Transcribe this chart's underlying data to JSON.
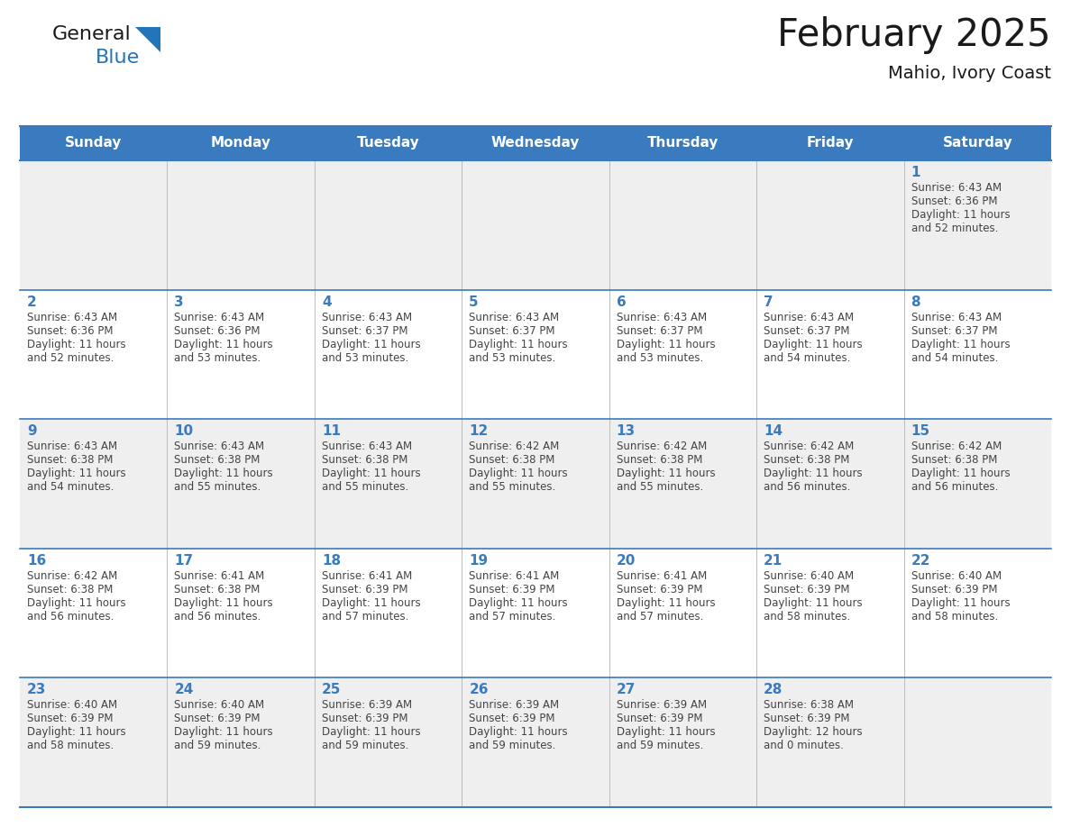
{
  "title": "February 2025",
  "subtitle": "Mahio, Ivory Coast",
  "header_bg": "#3a7abf",
  "header_text_color": "#ffffff",
  "cell_bg_odd": "#efefef",
  "cell_bg_even": "#ffffff",
  "day_names": [
    "Sunday",
    "Monday",
    "Tuesday",
    "Wednesday",
    "Thursday",
    "Friday",
    "Saturday"
  ],
  "title_color": "#1a1a1a",
  "subtitle_color": "#1a1a1a",
  "day_number_color": "#3a7abf",
  "cell_text_color": "#444444",
  "divider_color": "#3a7abf",
  "grid_color": "#bbbbbb",
  "days": [
    {
      "date": 1,
      "col": 6,
      "row": 0,
      "sunrise": "6:43 AM",
      "sunset": "6:36 PM",
      "daylight": "11 hours",
      "daylight2": "and 52 minutes."
    },
    {
      "date": 2,
      "col": 0,
      "row": 1,
      "sunrise": "6:43 AM",
      "sunset": "6:36 PM",
      "daylight": "11 hours",
      "daylight2": "and 52 minutes."
    },
    {
      "date": 3,
      "col": 1,
      "row": 1,
      "sunrise": "6:43 AM",
      "sunset": "6:36 PM",
      "daylight": "11 hours",
      "daylight2": "and 53 minutes."
    },
    {
      "date": 4,
      "col": 2,
      "row": 1,
      "sunrise": "6:43 AM",
      "sunset": "6:37 PM",
      "daylight": "11 hours",
      "daylight2": "and 53 minutes."
    },
    {
      "date": 5,
      "col": 3,
      "row": 1,
      "sunrise": "6:43 AM",
      "sunset": "6:37 PM",
      "daylight": "11 hours",
      "daylight2": "and 53 minutes."
    },
    {
      "date": 6,
      "col": 4,
      "row": 1,
      "sunrise": "6:43 AM",
      "sunset": "6:37 PM",
      "daylight": "11 hours",
      "daylight2": "and 53 minutes."
    },
    {
      "date": 7,
      "col": 5,
      "row": 1,
      "sunrise": "6:43 AM",
      "sunset": "6:37 PM",
      "daylight": "11 hours",
      "daylight2": "and 54 minutes."
    },
    {
      "date": 8,
      "col": 6,
      "row": 1,
      "sunrise": "6:43 AM",
      "sunset": "6:37 PM",
      "daylight": "11 hours",
      "daylight2": "and 54 minutes."
    },
    {
      "date": 9,
      "col": 0,
      "row": 2,
      "sunrise": "6:43 AM",
      "sunset": "6:38 PM",
      "daylight": "11 hours",
      "daylight2": "and 54 minutes."
    },
    {
      "date": 10,
      "col": 1,
      "row": 2,
      "sunrise": "6:43 AM",
      "sunset": "6:38 PM",
      "daylight": "11 hours",
      "daylight2": "and 55 minutes."
    },
    {
      "date": 11,
      "col": 2,
      "row": 2,
      "sunrise": "6:43 AM",
      "sunset": "6:38 PM",
      "daylight": "11 hours",
      "daylight2": "and 55 minutes."
    },
    {
      "date": 12,
      "col": 3,
      "row": 2,
      "sunrise": "6:42 AM",
      "sunset": "6:38 PM",
      "daylight": "11 hours",
      "daylight2": "and 55 minutes."
    },
    {
      "date": 13,
      "col": 4,
      "row": 2,
      "sunrise": "6:42 AM",
      "sunset": "6:38 PM",
      "daylight": "11 hours",
      "daylight2": "and 55 minutes."
    },
    {
      "date": 14,
      "col": 5,
      "row": 2,
      "sunrise": "6:42 AM",
      "sunset": "6:38 PM",
      "daylight": "11 hours",
      "daylight2": "and 56 minutes."
    },
    {
      "date": 15,
      "col": 6,
      "row": 2,
      "sunrise": "6:42 AM",
      "sunset": "6:38 PM",
      "daylight": "11 hours",
      "daylight2": "and 56 minutes."
    },
    {
      "date": 16,
      "col": 0,
      "row": 3,
      "sunrise": "6:42 AM",
      "sunset": "6:38 PM",
      "daylight": "11 hours",
      "daylight2": "and 56 minutes."
    },
    {
      "date": 17,
      "col": 1,
      "row": 3,
      "sunrise": "6:41 AM",
      "sunset": "6:38 PM",
      "daylight": "11 hours",
      "daylight2": "and 56 minutes."
    },
    {
      "date": 18,
      "col": 2,
      "row": 3,
      "sunrise": "6:41 AM",
      "sunset": "6:39 PM",
      "daylight": "11 hours",
      "daylight2": "and 57 minutes."
    },
    {
      "date": 19,
      "col": 3,
      "row": 3,
      "sunrise": "6:41 AM",
      "sunset": "6:39 PM",
      "daylight": "11 hours",
      "daylight2": "and 57 minutes."
    },
    {
      "date": 20,
      "col": 4,
      "row": 3,
      "sunrise": "6:41 AM",
      "sunset": "6:39 PM",
      "daylight": "11 hours",
      "daylight2": "and 57 minutes."
    },
    {
      "date": 21,
      "col": 5,
      "row": 3,
      "sunrise": "6:40 AM",
      "sunset": "6:39 PM",
      "daylight": "11 hours",
      "daylight2": "and 58 minutes."
    },
    {
      "date": 22,
      "col": 6,
      "row": 3,
      "sunrise": "6:40 AM",
      "sunset": "6:39 PM",
      "daylight": "11 hours",
      "daylight2": "and 58 minutes."
    },
    {
      "date": 23,
      "col": 0,
      "row": 4,
      "sunrise": "6:40 AM",
      "sunset": "6:39 PM",
      "daylight": "11 hours",
      "daylight2": "and 58 minutes."
    },
    {
      "date": 24,
      "col": 1,
      "row": 4,
      "sunrise": "6:40 AM",
      "sunset": "6:39 PM",
      "daylight": "11 hours",
      "daylight2": "and 59 minutes."
    },
    {
      "date": 25,
      "col": 2,
      "row": 4,
      "sunrise": "6:39 AM",
      "sunset": "6:39 PM",
      "daylight": "11 hours",
      "daylight2": "and 59 minutes."
    },
    {
      "date": 26,
      "col": 3,
      "row": 4,
      "sunrise": "6:39 AM",
      "sunset": "6:39 PM",
      "daylight": "11 hours",
      "daylight2": "and 59 minutes."
    },
    {
      "date": 27,
      "col": 4,
      "row": 4,
      "sunrise": "6:39 AM",
      "sunset": "6:39 PM",
      "daylight": "11 hours",
      "daylight2": "and 59 minutes."
    },
    {
      "date": 28,
      "col": 5,
      "row": 4,
      "sunrise": "6:38 AM",
      "sunset": "6:39 PM",
      "daylight": "12 hours",
      "daylight2": "and 0 minutes."
    }
  ],
  "num_rows": 5,
  "logo_general_color": "#1a1a1a",
  "logo_blue_color": "#2175b8",
  "logo_triangle_color": "#2175b8"
}
